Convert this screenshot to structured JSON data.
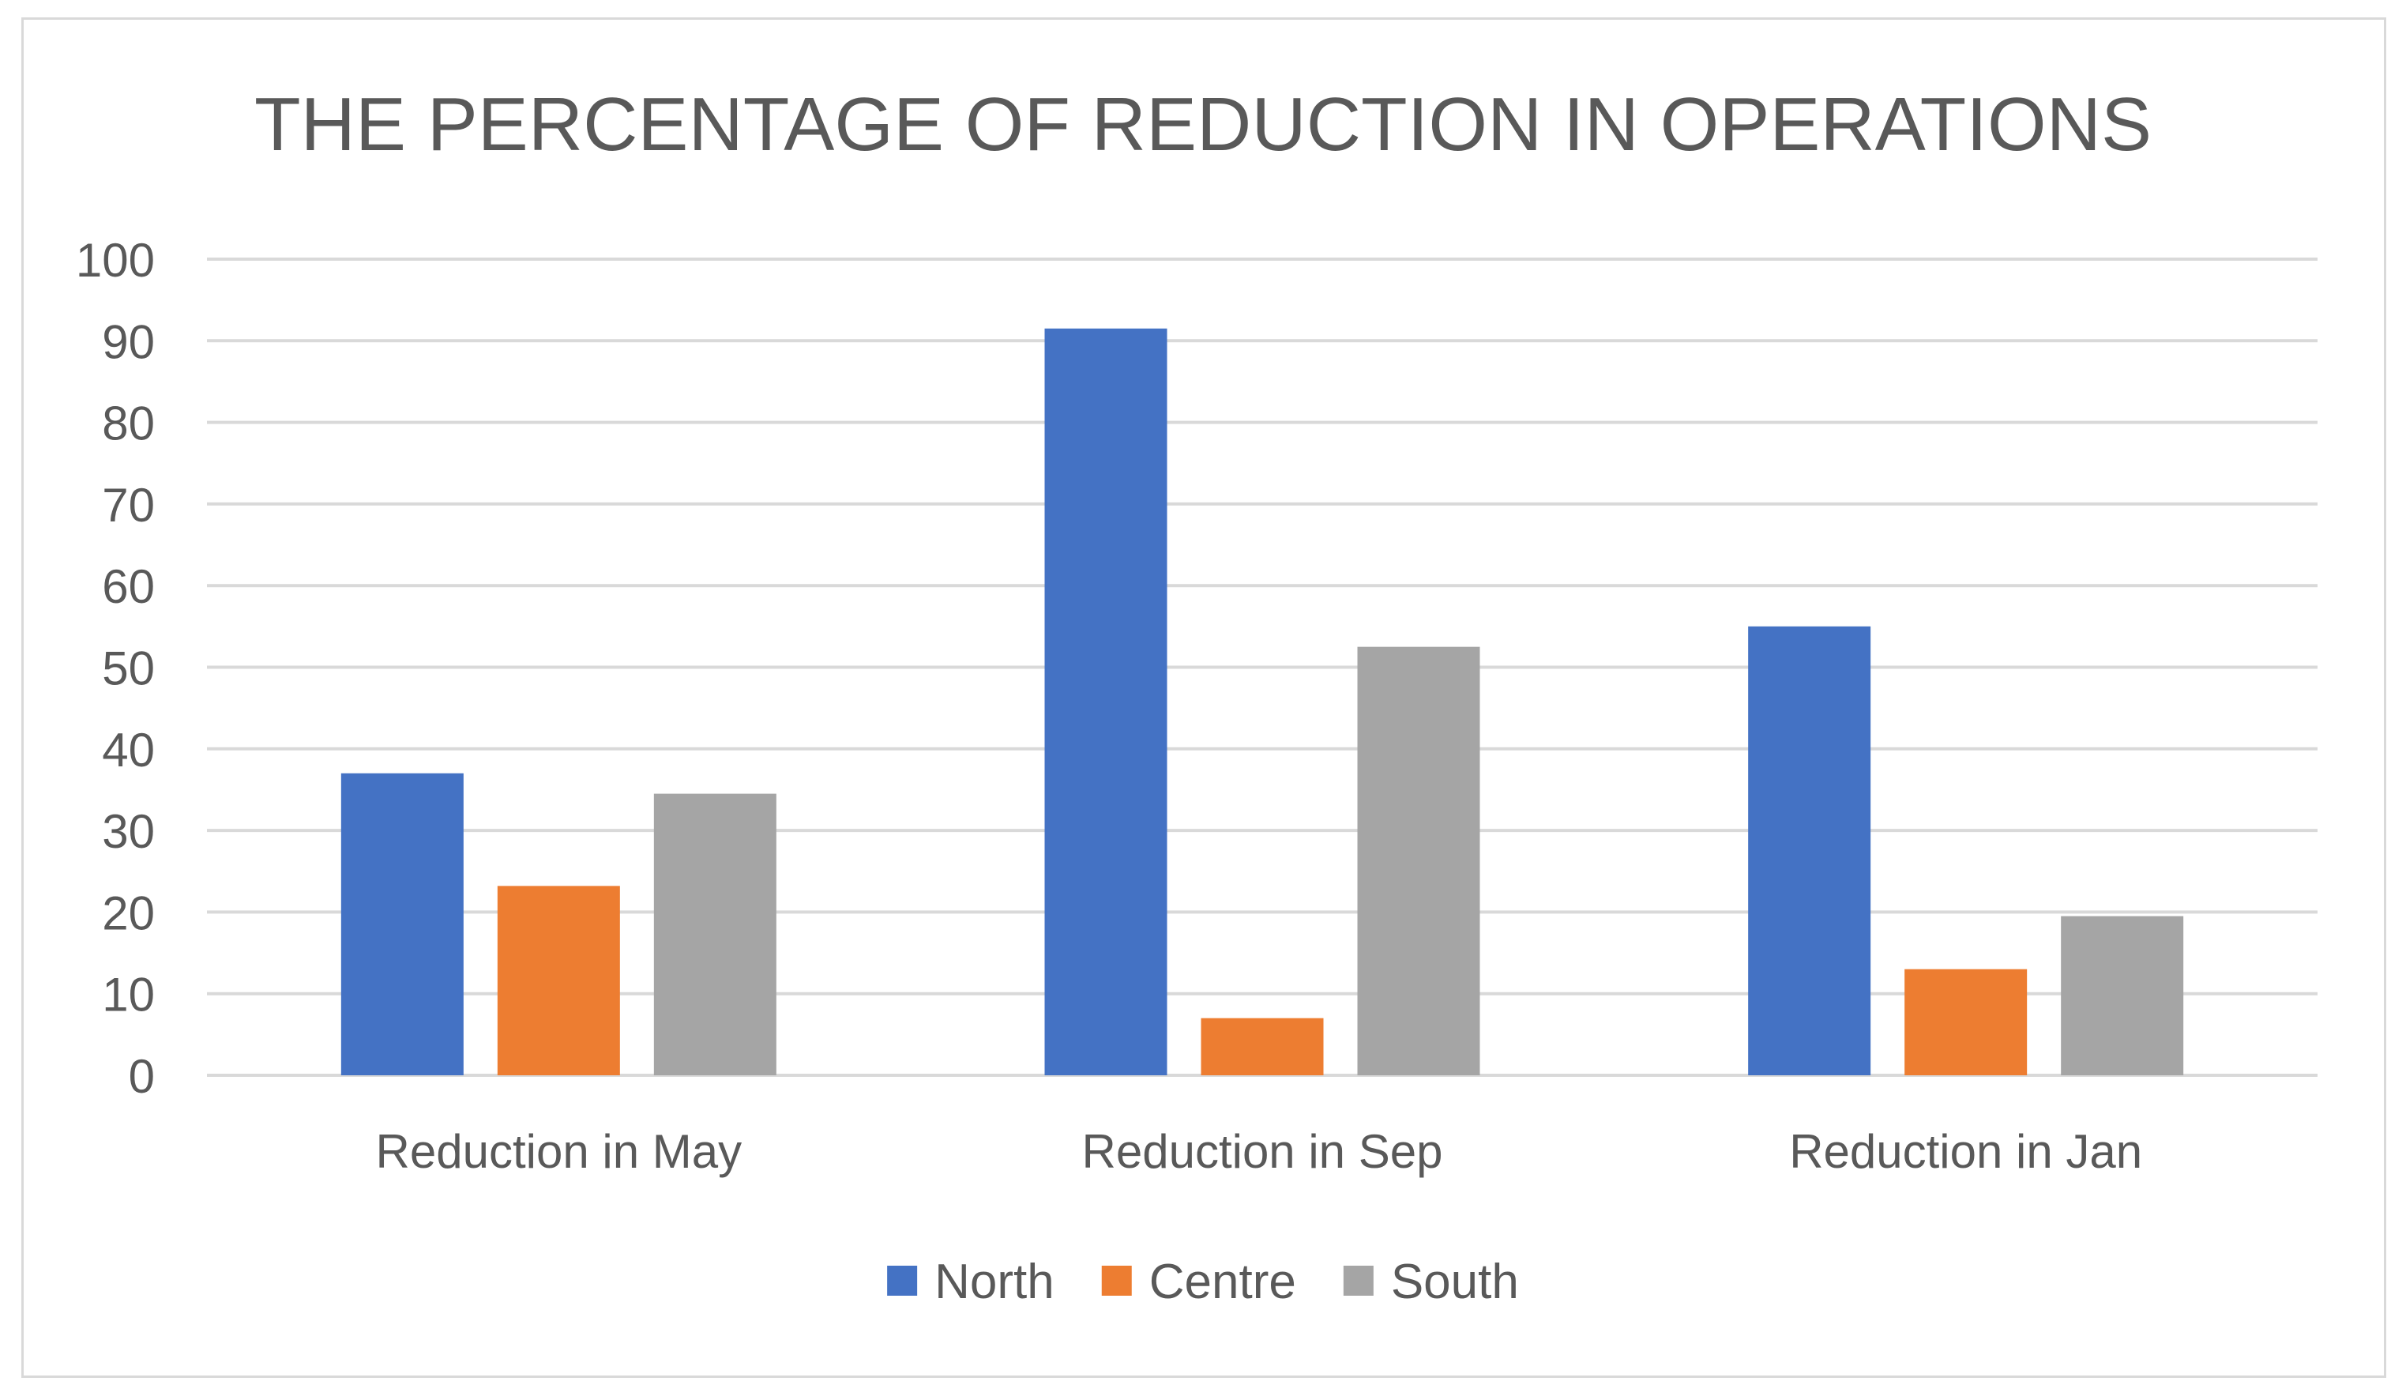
{
  "chart_data": {
    "type": "bar",
    "title": "THE PERCENTAGE OF REDUCTION IN OPERATIONS",
    "categories": [
      "Reduction in May",
      "Reduction in Sep",
      "Reduction in Jan"
    ],
    "series": [
      {
        "name": "North",
        "color": "#4472C4",
        "values": [
          37,
          91.5,
          55
        ]
      },
      {
        "name": "Centre",
        "color": "#ED7D31",
        "values": [
          23.2,
          7,
          13
        ]
      },
      {
        "name": "South",
        "color": "#A5A5A5",
        "values": [
          34.5,
          52.5,
          19.5
        ]
      }
    ],
    "ylim": [
      0,
      100
    ],
    "yticks": [
      "0",
      "10",
      "20",
      "30",
      "40",
      "50",
      "60",
      "70",
      "80",
      "90",
      "100"
    ],
    "grid": true,
    "legend_position": "bottom",
    "colors": {
      "gridline": "#d9d9d9",
      "text": "#595959",
      "border": "#d9d9d9"
    }
  }
}
